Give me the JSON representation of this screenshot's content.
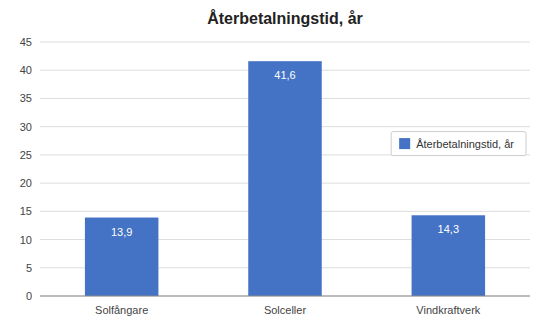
{
  "chart_data": {
    "type": "bar",
    "title": "Återbetalningstid, år",
    "categories": [
      "Solfångare",
      "Solceller",
      "Vindkraftverk"
    ],
    "series": [
      {
        "name": "Återbetalningstid, år",
        "color": "#4472C4",
        "values": [
          13.9,
          41.6,
          14.3
        ],
        "value_labels": [
          "13,9",
          "41,6",
          "14,3"
        ]
      }
    ],
    "ylim": [
      0,
      45
    ],
    "yticks": [
      0,
      5,
      10,
      15,
      20,
      25,
      30,
      35,
      40,
      45
    ],
    "grid": true,
    "legend": "right",
    "data_labels": true
  }
}
